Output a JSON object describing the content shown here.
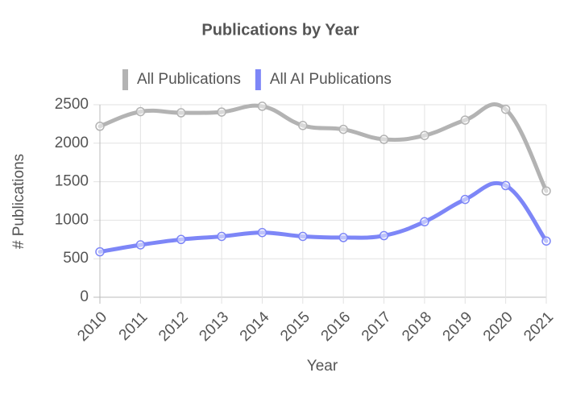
{
  "chart_data": {
    "type": "line",
    "title": "Publications by Year",
    "x_label": "Year",
    "y_label": "# Publications",
    "categories": [
      "2010",
      "2011",
      "2012",
      "2013",
      "2014",
      "2015",
      "2016",
      "2017",
      "2018",
      "2019",
      "2020",
      "2021"
    ],
    "series": [
      {
        "name": "All Publications",
        "color": "#b3b3b3",
        "values": [
          2220,
          2410,
          2395,
          2405,
          2480,
          2230,
          2180,
          2050,
          2100,
          2300,
          2440,
          1380
        ]
      },
      {
        "name": "All AI Publications",
        "color": "#7d86f7",
        "values": [
          590,
          680,
          750,
          790,
          840,
          790,
          775,
          800,
          980,
          1270,
          1450,
          730
        ]
      }
    ],
    "ylim": [
      0,
      2500
    ],
    "yticks": [
      0,
      500,
      1000,
      1500,
      2000,
      2500
    ],
    "grid": true
  }
}
